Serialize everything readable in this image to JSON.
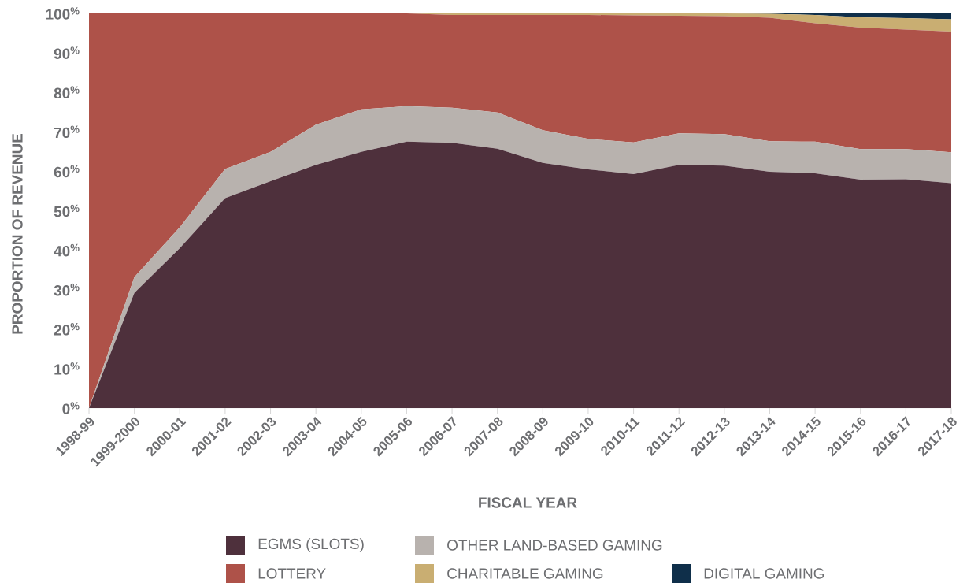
{
  "chart_data": {
    "type": "area",
    "stacked": true,
    "xlabel": "FISCAL YEAR",
    "ylabel": "PROPORTION OF REVENUE",
    "categories": [
      "1998-99",
      "1999-2000",
      "2000-01",
      "2001-02",
      "2002-03",
      "2003-04",
      "2004-05",
      "2005-06",
      "2006-07",
      "2007-08",
      "2008-09",
      "2009-10",
      "2010-11",
      "2011-12",
      "2012-13",
      "2013-14",
      "2014-15",
      "2015-16",
      "2016-17",
      "2017-18"
    ],
    "series": [
      {
        "name": "EGMS (SLOTS)",
        "color": "#4e303c",
        "values": [
          0,
          29.2,
          40.5,
          53.2,
          57.5,
          61.6,
          64.9,
          67.5,
          67.2,
          65.7,
          62.1,
          60.5,
          59.3,
          61.6,
          61.4,
          59.9,
          59.5,
          57.9,
          58.0,
          57.0
        ]
      },
      {
        "name": "OTHER LAND-BASED GAMING",
        "color": "#b8b2ae",
        "values": [
          0,
          4.0,
          5.3,
          7.4,
          7.4,
          10.2,
          10.8,
          9.0,
          8.9,
          9.2,
          8.3,
          7.7,
          8.0,
          8.0,
          8.0,
          7.7,
          8.0,
          7.7,
          7.6,
          7.8
        ]
      },
      {
        "name": "LOTTERY",
        "color": "#ae5249",
        "values": [
          100,
          66.8,
          54.2,
          39.4,
          35.1,
          28.2,
          24.3,
          23.5,
          23.5,
          24.7,
          29.2,
          31.4,
          32.2,
          29.8,
          29.9,
          31.3,
          30.0,
          30.8,
          30.3,
          30.6
        ]
      },
      {
        "name": "CHARITABLE GAMING",
        "color": "#c9ae72",
        "values": [
          0,
          0,
          0,
          0,
          0,
          0,
          0,
          0,
          0.4,
          0.4,
          0.4,
          0.4,
          0.5,
          0.6,
          0.7,
          1.0,
          2.1,
          2.6,
          2.9,
          3.1
        ]
      },
      {
        "name": "DIGITAL GAMING",
        "color": "#0f2f4a",
        "values": [
          0,
          0,
          0,
          0,
          0,
          0,
          0,
          0,
          0,
          0,
          0,
          0,
          0,
          0,
          0,
          0.1,
          0.4,
          1.0,
          1.2,
          1.5
        ]
      }
    ],
    "ylim": [
      0,
      100
    ],
    "yticks": [
      {
        "value": 0,
        "label": "0$^{%}$"
      },
      {
        "value": 10,
        "label": "10$^{%}$"
      },
      {
        "value": 20,
        "label": "20$^{%}$"
      },
      {
        "value": 30,
        "label": "30$^{%}$"
      },
      {
        "value": 40,
        "label": "40$^{%}$"
      },
      {
        "value": 50,
        "label": "50$^{%}$"
      },
      {
        "value": 60,
        "label": "60$^{%}$"
      },
      {
        "value": 70,
        "label": "70$^{%}$"
      },
      {
        "value": 80,
        "label": "80$^{%}$"
      },
      {
        "value": 90,
        "label": "90$^{%}$"
      },
      {
        "value": 100,
        "label": "100$^{%}$"
      }
    ],
    "legend": "bottom"
  }
}
